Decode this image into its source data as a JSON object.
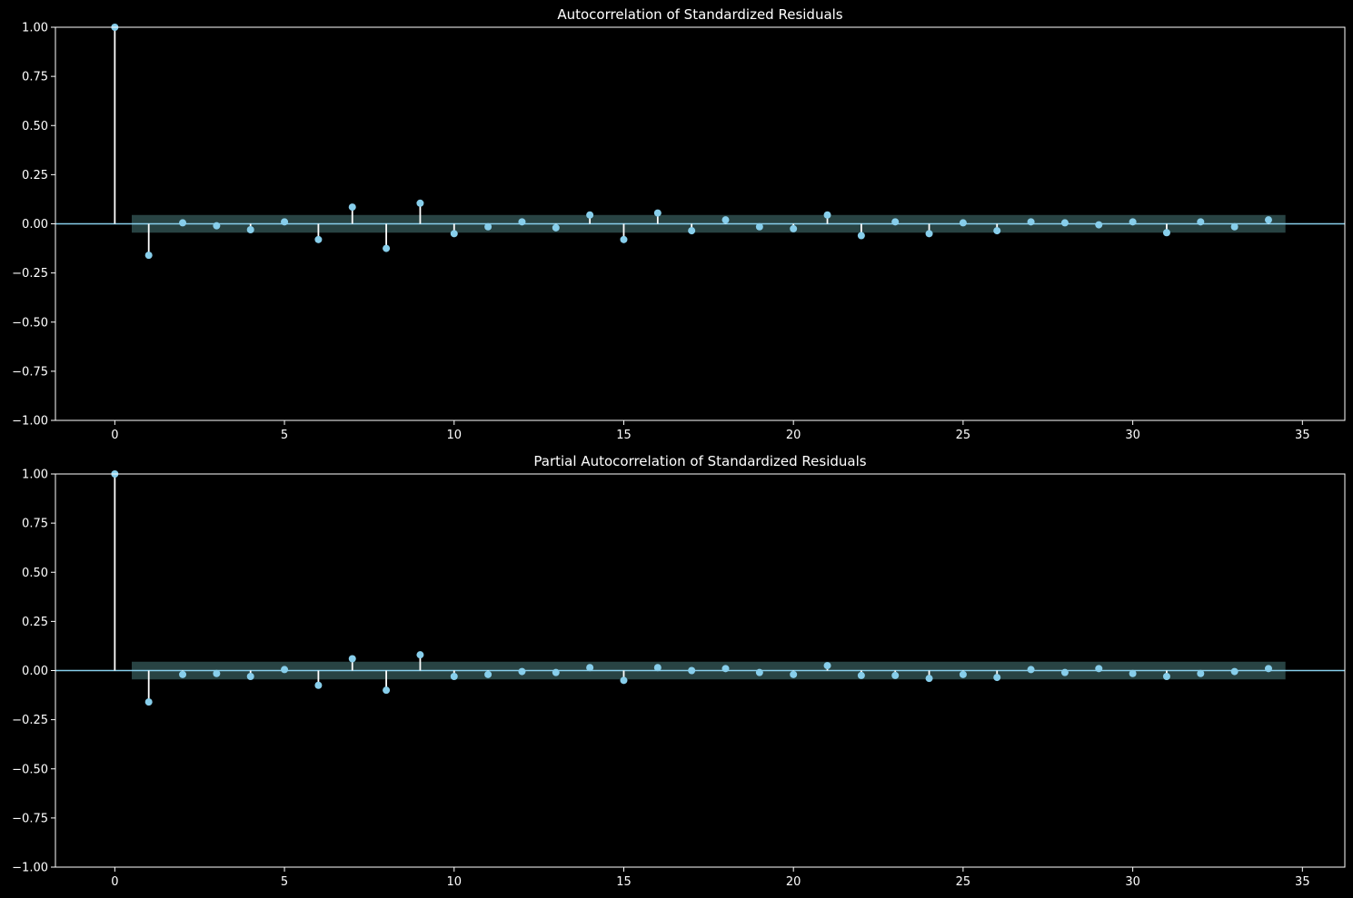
{
  "colors": {
    "background": "#000000",
    "axes": "#ffffff",
    "stem": "#ffffff",
    "marker": "#87ceeb",
    "zero_line": "#87ceeb",
    "confidence_band": "#2f4f4f"
  },
  "chart_data": [
    {
      "type": "stem",
      "title": "Autocorrelation of Standardized Residuals",
      "xlabel": "",
      "ylabel": "",
      "xlim": [
        -1.75,
        36.25
      ],
      "ylim": [
        -1.0,
        1.0
      ],
      "xticks": [
        0,
        5,
        10,
        15,
        20,
        25,
        30,
        35
      ],
      "yticks": [
        1.0,
        0.75,
        0.5,
        0.25,
        0.0,
        -0.25,
        -0.5,
        -0.75,
        -1.0
      ],
      "xtick_labels": [
        "0",
        "5",
        "10",
        "15",
        "20",
        "25",
        "30",
        "35"
      ],
      "ytick_labels": [
        "1.00",
        "0.75",
        "0.50",
        "0.25",
        "0.00",
        "−0.25",
        "−0.50",
        "−0.75",
        "−1.00"
      ],
      "grid": false,
      "confidence_band": {
        "x_range": [
          0.5,
          34.5
        ],
        "upper": 0.045,
        "lower": -0.045
      },
      "x": [
        0,
        1,
        2,
        3,
        4,
        5,
        6,
        7,
        8,
        9,
        10,
        11,
        12,
        13,
        14,
        15,
        16,
        17,
        18,
        19,
        20,
        21,
        22,
        23,
        24,
        25,
        26,
        27,
        28,
        29,
        30,
        31,
        32,
        33,
        34
      ],
      "values": [
        1.0,
        -0.16,
        0.005,
        -0.01,
        -0.03,
        0.01,
        -0.08,
        0.085,
        -0.125,
        0.105,
        -0.05,
        -0.015,
        0.01,
        -0.02,
        0.045,
        -0.08,
        0.055,
        -0.035,
        0.02,
        -0.015,
        -0.025,
        0.045,
        -0.06,
        0.01,
        -0.05,
        0.005,
        -0.035,
        0.01,
        0.005,
        -0.005,
        0.01,
        -0.045,
        0.01,
        -0.015,
        0.02
      ]
    },
    {
      "type": "stem",
      "title": "Partial Autocorrelation of Standardized Residuals",
      "xlabel": "",
      "ylabel": "",
      "xlim": [
        -1.75,
        36.25
      ],
      "ylim": [
        -1.0,
        1.0
      ],
      "xticks": [
        0,
        5,
        10,
        15,
        20,
        25,
        30,
        35
      ],
      "yticks": [
        1.0,
        0.75,
        0.5,
        0.25,
        0.0,
        -0.25,
        -0.5,
        -0.75,
        -1.0
      ],
      "xtick_labels": [
        "0",
        "5",
        "10",
        "15",
        "20",
        "25",
        "30",
        "35"
      ],
      "ytick_labels": [
        "1.00",
        "0.75",
        "0.50",
        "0.25",
        "0.00",
        "−0.25",
        "−0.50",
        "−0.75",
        "−1.00"
      ],
      "grid": false,
      "confidence_band": {
        "x_range": [
          0.5,
          34.5
        ],
        "upper": 0.045,
        "lower": -0.045
      },
      "x": [
        0,
        1,
        2,
        3,
        4,
        5,
        6,
        7,
        8,
        9,
        10,
        11,
        12,
        13,
        14,
        15,
        16,
        17,
        18,
        19,
        20,
        21,
        22,
        23,
        24,
        25,
        26,
        27,
        28,
        29,
        30,
        31,
        32,
        33,
        34
      ],
      "values": [
        1.0,
        -0.16,
        -0.02,
        -0.015,
        -0.03,
        0.005,
        -0.075,
        0.06,
        -0.1,
        0.08,
        -0.03,
        -0.02,
        -0.005,
        -0.01,
        0.015,
        -0.05,
        0.015,
        0.0,
        0.01,
        -0.01,
        -0.02,
        0.025,
        -0.025,
        -0.025,
        -0.04,
        -0.02,
        -0.035,
        0.005,
        -0.01,
        0.01,
        -0.015,
        -0.03,
        -0.015,
        -0.005,
        0.01
      ]
    }
  ]
}
